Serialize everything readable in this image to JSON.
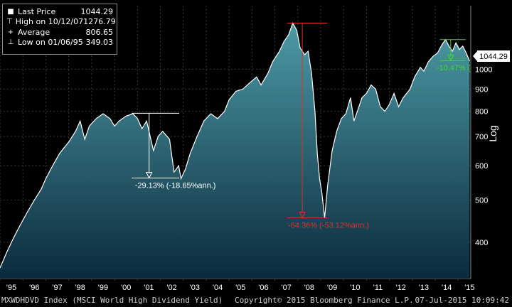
{
  "legend": {
    "items": [
      {
        "label": "Last Price",
        "value": "1044.29"
      },
      {
        "label": "High on 10/12/07",
        "value": "1276.79"
      },
      {
        "label": "Average",
        "value": "806.65"
      },
      {
        "label": "Low on 01/06/95",
        "value": "349.03"
      }
    ]
  },
  "footer": {
    "index": "MXWDHDVD Index (MSCI World High Dividend Yield)",
    "copyright": "Copyright© 2015 Bloomberg Finance L.P.",
    "timestamp": "07-Jul-2015 10:09:42"
  },
  "chart_data": {
    "type": "area",
    "yscale": "log",
    "ylabel": "Log",
    "ylim": [
      330,
      1400
    ],
    "xlim": [
      1995.0,
      2015.55
    ],
    "y_ticks": [
      400,
      500,
      600,
      700,
      800,
      900,
      1000
    ],
    "x_ticks": [
      "'95",
      "'96",
      "'97",
      "'98",
      "'99",
      "'00",
      "'01",
      "'02",
      "'03",
      "'04",
      "'05",
      "'06",
      "'07",
      "'08",
      "'09",
      "'10",
      "'11",
      "'12",
      "'13",
      "'14",
      "'15"
    ],
    "last_price_label": "1044.29",
    "colors": {
      "area_top": "#4d9aa6",
      "area_bottom": "#0b2b3d",
      "line": "#ffffff",
      "grid": "#3a3a3a",
      "white_annot": "#ffffff",
      "red_annot": "#e0302a",
      "green_annot": "#3ddc2d"
    },
    "series": [
      {
        "values": [
          [
            1995.0,
            349
          ],
          [
            1995.3,
            380
          ],
          [
            1995.6,
            410
          ],
          [
            1995.9,
            440
          ],
          [
            1996.2,
            470
          ],
          [
            1996.5,
            500
          ],
          [
            1996.8,
            530
          ],
          [
            1997.0,
            560
          ],
          [
            1997.3,
            600
          ],
          [
            1997.6,
            640
          ],
          [
            1997.8,
            660
          ],
          [
            1998.0,
            680
          ],
          [
            1998.3,
            720
          ],
          [
            1998.5,
            760
          ],
          [
            1998.7,
            690
          ],
          [
            1998.9,
            740
          ],
          [
            1999.2,
            770
          ],
          [
            1999.5,
            790
          ],
          [
            1999.8,
            770
          ],
          [
            2000.0,
            740
          ],
          [
            2000.2,
            760
          ],
          [
            2000.5,
            780
          ],
          [
            2000.8,
            790
          ],
          [
            2001.0,
            770
          ],
          [
            2001.2,
            730
          ],
          [
            2001.4,
            760
          ],
          [
            2001.7,
            650
          ],
          [
            2001.9,
            700
          ],
          [
            2002.1,
            720
          ],
          [
            2002.4,
            690
          ],
          [
            2002.6,
            580
          ],
          [
            2002.8,
            600
          ],
          [
            2002.9,
            560
          ],
          [
            2003.1,
            590
          ],
          [
            2003.3,
            640
          ],
          [
            2003.6,
            700
          ],
          [
            2003.9,
            760
          ],
          [
            2004.2,
            790
          ],
          [
            2004.5,
            770
          ],
          [
            2004.8,
            800
          ],
          [
            2005.0,
            850
          ],
          [
            2005.3,
            890
          ],
          [
            2005.6,
            900
          ],
          [
            2005.9,
            930
          ],
          [
            2006.2,
            960
          ],
          [
            2006.4,
            920
          ],
          [
            2006.7,
            980
          ],
          [
            2006.9,
            1040
          ],
          [
            2007.2,
            1100
          ],
          [
            2007.4,
            1160
          ],
          [
            2007.6,
            1200
          ],
          [
            2007.78,
            1276.79
          ],
          [
            2007.95,
            1230
          ],
          [
            2008.1,
            1120
          ],
          [
            2008.3,
            1080
          ],
          [
            2008.45,
            1100
          ],
          [
            2008.6,
            980
          ],
          [
            2008.75,
            800
          ],
          [
            2008.85,
            640
          ],
          [
            2008.95,
            560
          ],
          [
            2009.05,
            520
          ],
          [
            2009.17,
            455
          ],
          [
            2009.3,
            540
          ],
          [
            2009.5,
            650
          ],
          [
            2009.7,
            720
          ],
          [
            2009.9,
            770
          ],
          [
            2010.1,
            790
          ],
          [
            2010.3,
            860
          ],
          [
            2010.45,
            760
          ],
          [
            2010.6,
            800
          ],
          [
            2010.8,
            860
          ],
          [
            2011.0,
            880
          ],
          [
            2011.2,
            920
          ],
          [
            2011.4,
            900
          ],
          [
            2011.6,
            820
          ],
          [
            2011.8,
            800
          ],
          [
            2012.0,
            830
          ],
          [
            2012.2,
            880
          ],
          [
            2012.4,
            820
          ],
          [
            2012.6,
            860
          ],
          [
            2012.9,
            900
          ],
          [
            2013.1,
            960
          ],
          [
            2013.35,
            1010
          ],
          [
            2013.5,
            990
          ],
          [
            2013.7,
            1040
          ],
          [
            2013.9,
            1070
          ],
          [
            2014.1,
            1090
          ],
          [
            2014.3,
            1140
          ],
          [
            2014.45,
            1170
          ],
          [
            2014.6,
            1130
          ],
          [
            2014.75,
            1100
          ],
          [
            2014.9,
            1150
          ],
          [
            2015.05,
            1110
          ],
          [
            2015.2,
            1130
          ],
          [
            2015.35,
            1090
          ],
          [
            2015.5,
            1044.29
          ]
        ]
      }
    ],
    "annotations": [
      {
        "label": "-29.13% (-18.65%ann.)",
        "color": "white",
        "x_from": 2001.0,
        "x_to": 2002.7,
        "y_high": 792,
        "y_low": 562
      },
      {
        "label": "-64.36% (-53.12%ann.)",
        "color": "red",
        "x_from": 2007.78,
        "x_to": 2009.17,
        "y_high": 1276.79,
        "y_low": 455
      },
      {
        "label": "-10.47% (",
        "color": "green",
        "x_from": 2014.45,
        "x_to": 2015.2,
        "y_high": 1170,
        "y_low": 1047
      }
    ]
  }
}
